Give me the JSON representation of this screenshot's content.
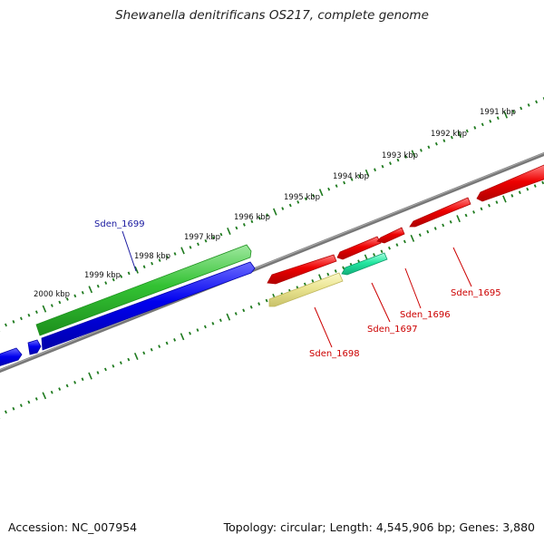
{
  "header": {
    "title": "Shewanella denitrificans OS217, complete genome"
  },
  "footer": {
    "accession": "Accession: NC_007954",
    "summary": "Topology: circular; Length: 4,545,906 bp; Genes: 3,880"
  },
  "scale": {
    "unit": "kbp",
    "labels": [
      "1991 kbp",
      "1992 kbp",
      "1993 kbp",
      "1994 kbp",
      "1995 kbp",
      "1996 kbp",
      "1997 kbp",
      "1998 kbp",
      "1999 kbp",
      "2000 kbp"
    ]
  },
  "genes": [
    {
      "id": "Sden_1699",
      "label": "Sden_1699",
      "strand": "+",
      "color": "#2db82d",
      "label_color": "#1a1aa0"
    },
    {
      "id": "Sden_1698",
      "label": "Sden_1698",
      "strand": "-",
      "color": "#e8e490",
      "label_color": "#cc0000"
    },
    {
      "id": "Sden_1697",
      "label": "Sden_1697",
      "strand": "-",
      "color": "#22e6a0",
      "label_color": "#cc0000"
    },
    {
      "id": "Sden_1696",
      "label": "Sden_1696",
      "strand": "-",
      "color": "#ee0000",
      "label_color": "#cc0000"
    },
    {
      "id": "Sden_1695",
      "label": "Sden_1695",
      "strand": "-",
      "color": "#ee0000",
      "label_color": "#cc0000"
    }
  ],
  "colors": {
    "backbone": "#777777",
    "tick": "#1e7a1e",
    "blue_gene": "#0000ee",
    "red_gene": "#ee0000"
  }
}
